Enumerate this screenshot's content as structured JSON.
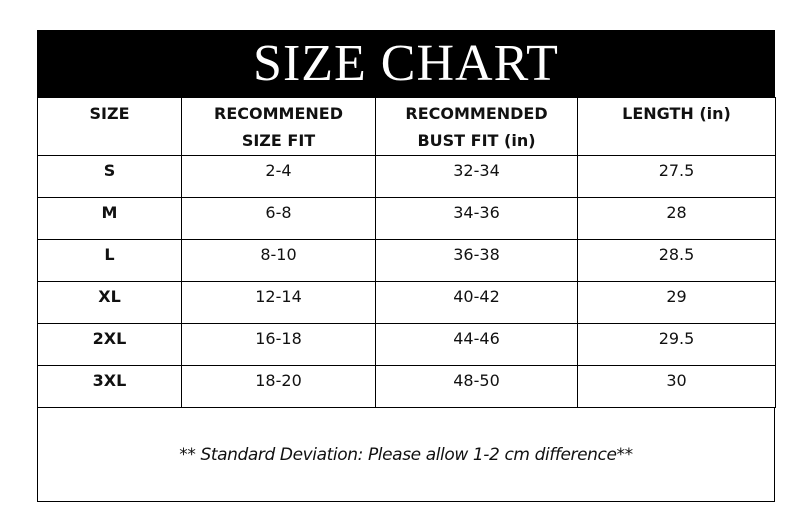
{
  "title": "SIZE CHART",
  "headers": [
    [
      "SIZE",
      ""
    ],
    [
      "RECOMMENED",
      "SIZE FIT"
    ],
    [
      "RECOMMENDED",
      "BUST FIT (in)"
    ],
    [
      "LENGTH (in)",
      ""
    ]
  ],
  "rows": [
    [
      "S",
      "2-4",
      "32-34",
      "27.5"
    ],
    [
      "M",
      "6-8",
      "34-36",
      "28"
    ],
    [
      "L",
      "8-10",
      "36-38",
      "28.5"
    ],
    [
      "XL",
      "12-14",
      "40-42",
      "29"
    ],
    [
      "2XL",
      "16-18",
      "44-46",
      "29.5"
    ],
    [
      "3XL",
      "18-20",
      "48-50",
      "30"
    ]
  ],
  "note": "** Standard Deviation: Please allow 1-2 cm difference**"
}
